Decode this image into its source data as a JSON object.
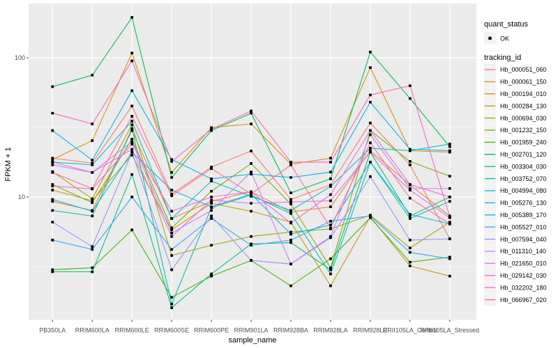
{
  "chart_data": {
    "type": "line",
    "title": "",
    "xlabel": "sample_name",
    "ylabel": "FPKM + 1",
    "yscale": "log10",
    "ylim": [
      1.3,
      245
    ],
    "yticks": [
      10,
      100
    ],
    "ytick_labels": [
      "10",
      "100"
    ],
    "yminor_breaks": [
      3.162,
      31.62
    ],
    "grid": "major-and-minor",
    "legend_position": "right",
    "panel_bg": "#EBEBEB",
    "grid_major_color": "#FFFFFF",
    "grid_minor_color": "#FFFFFF",
    "point_color": "#000000",
    "tick_color": "#333333",
    "tick_label_color": "#4D4D4D",
    "categories": [
      "PB350LA",
      "RRIM600LA",
      "RRIM600LE",
      "RRIM600SE",
      "RRIM600PE",
      "RRIM901LA",
      "RRIM928BA",
      "RRIM928LA",
      "RRIM928LE",
      "RRII105LA_Control",
      "RRII105LA_Stressed"
    ],
    "series": [
      {
        "name": "Hb_000051_060",
        "color": "#F8766D",
        "values": [
          19,
          17.5,
          45,
          10.5,
          16.4,
          21.4,
          9.6,
          12.2,
          34,
          17,
          5
        ]
      },
      {
        "name": "Hb_000061_150",
        "color": "#EA8331",
        "values": [
          9.3,
          8,
          30,
          7,
          9.3,
          10.9,
          7.8,
          8.5,
          21.5,
          12.2,
          7.3
        ]
      },
      {
        "name": "Hb_000194_010",
        "color": "#D89000",
        "values": [
          18.6,
          25.4,
          108,
          15,
          31.5,
          33.5,
          17.2,
          19,
          85,
          21.5,
          21
        ]
      },
      {
        "name": "Hb_000284_130",
        "color": "#C09B00",
        "values": [
          11.2,
          9.4,
          20,
          5.8,
          9,
          7.9,
          6.6,
          2.3,
          7.2,
          3.2,
          2.7
        ]
      },
      {
        "name": "Hb_000694_030",
        "color": "#A3A500",
        "values": [
          15.2,
          9.7,
          33,
          3.8,
          4.5,
          5.2,
          5.6,
          5.9,
          7.4,
          4.3,
          6.6
        ]
      },
      {
        "name": "Hb_001232_150",
        "color": "#7CAE00",
        "values": [
          12.3,
          9.1,
          26,
          6,
          11,
          17.4,
          8.9,
          3.1,
          30,
          18,
          14.1
        ]
      },
      {
        "name": "Hb_001959_240",
        "color": "#39B600",
        "values": [
          3,
          3.1,
          5.8,
          1.9,
          2.7,
          3.5,
          2.3,
          3.6,
          7.1,
          3.4,
          3.7
        ]
      },
      {
        "name": "Hb_002701_120",
        "color": "#00BB4E",
        "values": [
          62,
          75,
          195,
          13.8,
          30,
          40,
          10.7,
          13.5,
          110,
          51,
          23
        ]
      },
      {
        "name": "Hb_003304_030",
        "color": "#00BF7D",
        "values": [
          2.9,
          2.9,
          14.5,
          1.6,
          2.8,
          4.6,
          4.7,
          3,
          21,
          7.3,
          10
        ]
      },
      {
        "name": "Hb_003752_070",
        "color": "#00C1A3",
        "values": [
          8,
          7.3,
          31,
          1.7,
          8.4,
          10.3,
          7.6,
          2.8,
          17.8,
          7,
          9.3
        ]
      },
      {
        "name": "Hb_004994_080",
        "color": "#00BFC4",
        "values": [
          17.8,
          17,
          35,
          7,
          13,
          10.1,
          8,
          11.9,
          22.4,
          21.5,
          24
        ]
      },
      {
        "name": "Hb_005276_130",
        "color": "#00BAE0",
        "values": [
          9.6,
          7.9,
          21,
          11.2,
          8.5,
          10.5,
          5.4,
          6.3,
          17.8,
          7.5,
          6.4
        ]
      },
      {
        "name": "Hb_005389_170",
        "color": "#00B0F6",
        "values": [
          30,
          18.4,
          58,
          18.6,
          13.5,
          14.6,
          13.8,
          15.1,
          48,
          22,
          21.5
        ]
      },
      {
        "name": "Hb_005527_010",
        "color": "#35A2FF",
        "values": [
          4.9,
          4.2,
          10,
          4.2,
          7,
          4.5,
          4.9,
          6.7,
          7.3,
          4,
          3.6
        ]
      },
      {
        "name": "Hb_007594_040",
        "color": "#9590FF",
        "values": [
          6.6,
          4.4,
          21,
          3,
          7.3,
          3.5,
          3.3,
          5.1,
          14,
          4.9,
          5
        ]
      },
      {
        "name": "Hb_011310_140",
        "color": "#C77CFF",
        "values": [
          17,
          15,
          25,
          5.5,
          8,
          15.1,
          3.3,
          5.2,
          28,
          11.5,
          11.5
        ]
      },
      {
        "name": "Hb_021650_010",
        "color": "#E76BF3",
        "values": [
          17.8,
          15,
          22,
          5.2,
          9.5,
          9,
          9.2,
          9.4,
          21,
          11.2,
          7.1
        ]
      },
      {
        "name": "Hb_029142_030",
        "color": "#FA62DB",
        "values": [
          12,
          11.4,
          24,
          7.9,
          10,
          10.9,
          6.5,
          10.4,
          30,
          12.3,
          10
        ]
      },
      {
        "name": "Hb_032202_180",
        "color": "#FF62BC",
        "values": [
          40,
          33.5,
          95,
          18,
          30.6,
          41.5,
          17.8,
          17.8,
          54,
          63,
          7.2
        ]
      },
      {
        "name": "Hb_066967_020",
        "color": "#FF6A98",
        "values": [
          15,
          11.5,
          38,
          10.2,
          16,
          10.5,
          17,
          6,
          24.5,
          9.8,
          6.4
        ]
      }
    ]
  },
  "legend": {
    "quant_status_title": "quant_status",
    "ok_label": "OK",
    "ok_marker_color": "#000000",
    "tracking_id_title": "tracking_id",
    "key_bg": "#F2F2F2"
  }
}
